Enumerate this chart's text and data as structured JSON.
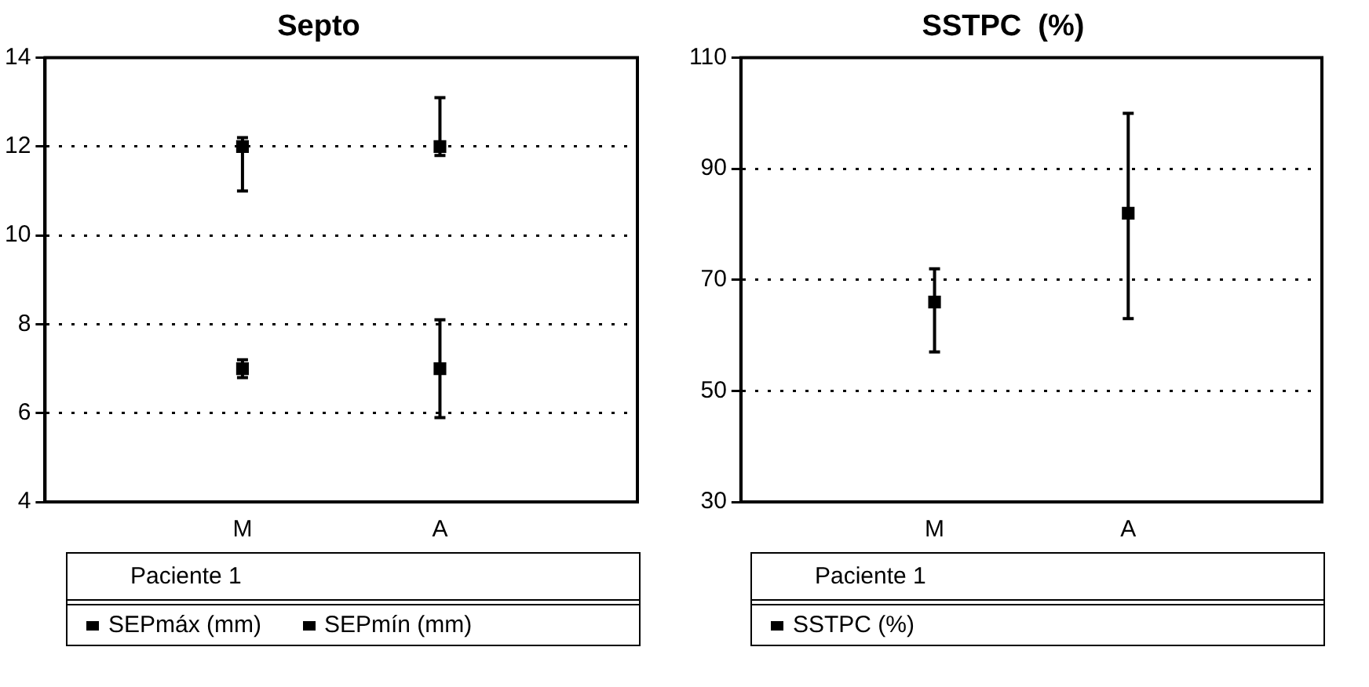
{
  "chart_data": [
    {
      "type": "scatter",
      "title": "Septo",
      "categories": [
        "M",
        "A"
      ],
      "ylim": [
        4,
        14
      ],
      "yticks": [
        4,
        6,
        8,
        10,
        12,
        14
      ],
      "grid": "y",
      "marker": "square",
      "legend": "bottom",
      "legend_title": "Paciente 1",
      "series": [
        {
          "name": "SEPmáx (mm)",
          "color": "#000000",
          "values": [
            12,
            12
          ],
          "errors": [
            [
              11,
              12.2
            ],
            [
              11.8,
              13.1
            ]
          ]
        },
        {
          "name": "SEPmín (mm)",
          "color": "#000000",
          "values": [
            7,
            7
          ],
          "errors": [
            [
              6.8,
              7.2
            ],
            [
              5.9,
              8.1
            ]
          ]
        }
      ]
    },
    {
      "type": "scatter",
      "title": "SSTPC  (%)",
      "categories": [
        "M",
        "A"
      ],
      "ylim": [
        30,
        110
      ],
      "yticks": [
        30,
        50,
        70,
        90,
        110
      ],
      "grid": "y",
      "marker": "square",
      "legend": "bottom",
      "legend_title": "Paciente 1",
      "series": [
        {
          "name": "SSTPC (%)",
          "color": "#000000",
          "values": [
            66,
            82
          ],
          "errors": [
            [
              57,
              72
            ],
            [
              63,
              100
            ]
          ]
        }
      ]
    }
  ]
}
